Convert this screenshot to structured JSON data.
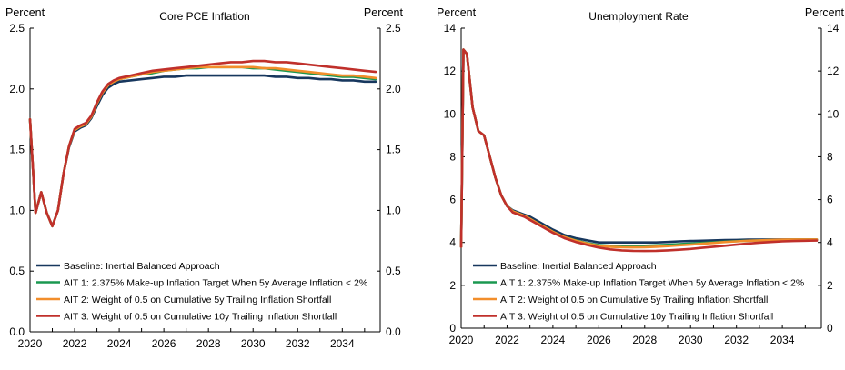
{
  "chart_data": [
    {
      "type": "line",
      "title": "Core PCE Inflation",
      "ylabel_left": "Percent",
      "ylabel_right": "Percent",
      "ylim": [
        0.0,
        2.5
      ],
      "xlim": [
        2020,
        2035.7
      ],
      "yticks": [
        "0.0",
        "0.5",
        "1.0",
        "1.5",
        "2.0",
        "2.5"
      ],
      "xticks": [
        "2020",
        "2022",
        "2024",
        "2026",
        "2028",
        "2030",
        "2032",
        "2034"
      ],
      "legend_position": "bottom-left",
      "x": [
        2020.0,
        2020.25,
        2020.5,
        2020.75,
        2021.0,
        2021.25,
        2021.5,
        2021.75,
        2022.0,
        2022.25,
        2022.5,
        2022.75,
        2023.0,
        2023.25,
        2023.5,
        2023.75,
        2024.0,
        2024.5,
        2025.0,
        2025.5,
        2026.0,
        2026.5,
        2027.0,
        2027.5,
        2028.0,
        2028.5,
        2029.0,
        2029.5,
        2030.0,
        2030.5,
        2031.0,
        2031.5,
        2032.0,
        2032.5,
        2033.0,
        2033.5,
        2034.0,
        2034.5,
        2035.0,
        2035.5
      ],
      "series": [
        {
          "name": "Baseline: Inertial Balanced Approach",
          "color": "#17375e",
          "values": [
            1.75,
            0.98,
            1.15,
            0.98,
            0.87,
            1.0,
            1.3,
            1.52,
            1.65,
            1.68,
            1.7,
            1.76,
            1.86,
            1.95,
            2.01,
            2.04,
            2.06,
            2.07,
            2.08,
            2.09,
            2.1,
            2.1,
            2.11,
            2.11,
            2.11,
            2.11,
            2.11,
            2.11,
            2.11,
            2.11,
            2.1,
            2.1,
            2.09,
            2.09,
            2.08,
            2.08,
            2.07,
            2.07,
            2.06,
            2.06
          ]
        },
        {
          "name": "AIT 1: 2.375% Make-up Inflation Target When 5y Average Inflation < 2%",
          "color": "#1a9850",
          "values": [
            1.75,
            0.98,
            1.15,
            0.98,
            0.87,
            1.0,
            1.3,
            1.53,
            1.66,
            1.69,
            1.71,
            1.77,
            1.88,
            1.97,
            2.03,
            2.06,
            2.08,
            2.1,
            2.12,
            2.13,
            2.15,
            2.16,
            2.17,
            2.17,
            2.18,
            2.18,
            2.18,
            2.18,
            2.17,
            2.17,
            2.16,
            2.15,
            2.14,
            2.13,
            2.12,
            2.11,
            2.1,
            2.1,
            2.09,
            2.08
          ]
        },
        {
          "name": "AIT 2: Weight of 0.5 on Cumulative 5y Trailing Inflation Shortfall",
          "color": "#f28e2b",
          "values": [
            1.75,
            0.98,
            1.15,
            0.98,
            0.87,
            1.0,
            1.3,
            1.53,
            1.66,
            1.69,
            1.71,
            1.77,
            1.88,
            1.97,
            2.03,
            2.06,
            2.08,
            2.1,
            2.12,
            2.14,
            2.15,
            2.16,
            2.17,
            2.18,
            2.18,
            2.18,
            2.18,
            2.18,
            2.18,
            2.17,
            2.17,
            2.16,
            2.15,
            2.14,
            2.13,
            2.12,
            2.11,
            2.11,
            2.1,
            2.09
          ]
        },
        {
          "name": "AIT 3: Weight of 0.5 on Cumulative 10y Trailing Inflation Shortfall",
          "color": "#c0302b",
          "values": [
            1.75,
            0.98,
            1.15,
            0.98,
            0.87,
            1.0,
            1.3,
            1.53,
            1.67,
            1.7,
            1.72,
            1.78,
            1.89,
            1.98,
            2.04,
            2.07,
            2.09,
            2.11,
            2.13,
            2.15,
            2.16,
            2.17,
            2.18,
            2.19,
            2.2,
            2.21,
            2.22,
            2.22,
            2.23,
            2.23,
            2.22,
            2.22,
            2.21,
            2.2,
            2.19,
            2.18,
            2.17,
            2.16,
            2.15,
            2.14
          ]
        }
      ]
    },
    {
      "type": "line",
      "title": "Unemployment Rate",
      "ylabel_left": "Percent",
      "ylabel_right": "Percent",
      "ylim": [
        0,
        14
      ],
      "xlim": [
        2020,
        2035.7
      ],
      "yticks": [
        "0",
        "2",
        "4",
        "6",
        "8",
        "10",
        "12",
        "14"
      ],
      "xticks": [
        "2020",
        "2022",
        "2024",
        "2026",
        "2028",
        "2030",
        "2032",
        "2034"
      ],
      "legend_position": "bottom-left",
      "x": [
        2020.0,
        2020.1,
        2020.25,
        2020.5,
        2020.75,
        2021.0,
        2021.25,
        2021.5,
        2021.75,
        2022.0,
        2022.25,
        2022.5,
        2022.75,
        2023.0,
        2023.5,
        2024.0,
        2024.5,
        2025.0,
        2025.5,
        2026.0,
        2026.5,
        2027.0,
        2027.5,
        2028.0,
        2028.5,
        2029.0,
        2029.5,
        2030.0,
        2030.5,
        2031.0,
        2031.5,
        2032.0,
        2032.5,
        2033.0,
        2033.5,
        2034.0,
        2034.5,
        2035.0,
        2035.5
      ],
      "series": [
        {
          "name": "Baseline: Inertial Balanced Approach",
          "color": "#17375e",
          "values": [
            3.8,
            13.0,
            12.8,
            10.3,
            9.2,
            9.0,
            8.0,
            7.0,
            6.2,
            5.7,
            5.5,
            5.4,
            5.3,
            5.2,
            4.9,
            4.6,
            4.35,
            4.2,
            4.1,
            4.0,
            4.0,
            4.0,
            4.0,
            4.0,
            4.0,
            4.02,
            4.05,
            4.07,
            4.08,
            4.1,
            4.11,
            4.12,
            4.13,
            4.13,
            4.14,
            4.14,
            4.14,
            4.14,
            4.14
          ]
        },
        {
          "name": "AIT 1: 2.375% Make-up Inflation Target When 5y Average Inflation < 2%",
          "color": "#1a9850",
          "values": [
            3.8,
            13.0,
            12.8,
            10.3,
            9.2,
            9.0,
            8.0,
            7.0,
            6.2,
            5.7,
            5.45,
            5.35,
            5.25,
            5.1,
            4.8,
            4.5,
            4.25,
            4.1,
            3.97,
            3.88,
            3.85,
            3.84,
            3.84,
            3.85,
            3.87,
            3.89,
            3.92,
            3.95,
            3.98,
            4.01,
            4.04,
            4.06,
            4.08,
            4.1,
            4.11,
            4.12,
            4.13,
            4.13,
            4.13
          ]
        },
        {
          "name": "AIT 2: Weight of 0.5 on Cumulative 5y Trailing Inflation Shortfall",
          "color": "#f28e2b",
          "values": [
            3.8,
            13.0,
            12.8,
            10.3,
            9.2,
            9.0,
            8.0,
            7.0,
            6.2,
            5.7,
            5.45,
            5.35,
            5.25,
            5.1,
            4.8,
            4.5,
            4.25,
            4.08,
            3.95,
            3.85,
            3.8,
            3.78,
            3.77,
            3.78,
            3.8,
            3.83,
            3.87,
            3.9,
            3.94,
            3.98,
            4.02,
            4.05,
            4.08,
            4.1,
            4.12,
            4.13,
            4.14,
            4.14,
            4.14
          ]
        },
        {
          "name": "AIT 3: Weight of 0.5 on Cumulative 10y Trailing Inflation Shortfall",
          "color": "#c0302b",
          "values": [
            3.8,
            13.0,
            12.8,
            10.3,
            9.2,
            9.0,
            8.0,
            7.0,
            6.2,
            5.7,
            5.4,
            5.3,
            5.2,
            5.05,
            4.75,
            4.45,
            4.2,
            4.02,
            3.88,
            3.76,
            3.68,
            3.63,
            3.61,
            3.6,
            3.61,
            3.63,
            3.66,
            3.7,
            3.75,
            3.8,
            3.85,
            3.9,
            3.95,
            3.99,
            4.02,
            4.05,
            4.07,
            4.08,
            4.09
          ]
        }
      ]
    }
  ]
}
